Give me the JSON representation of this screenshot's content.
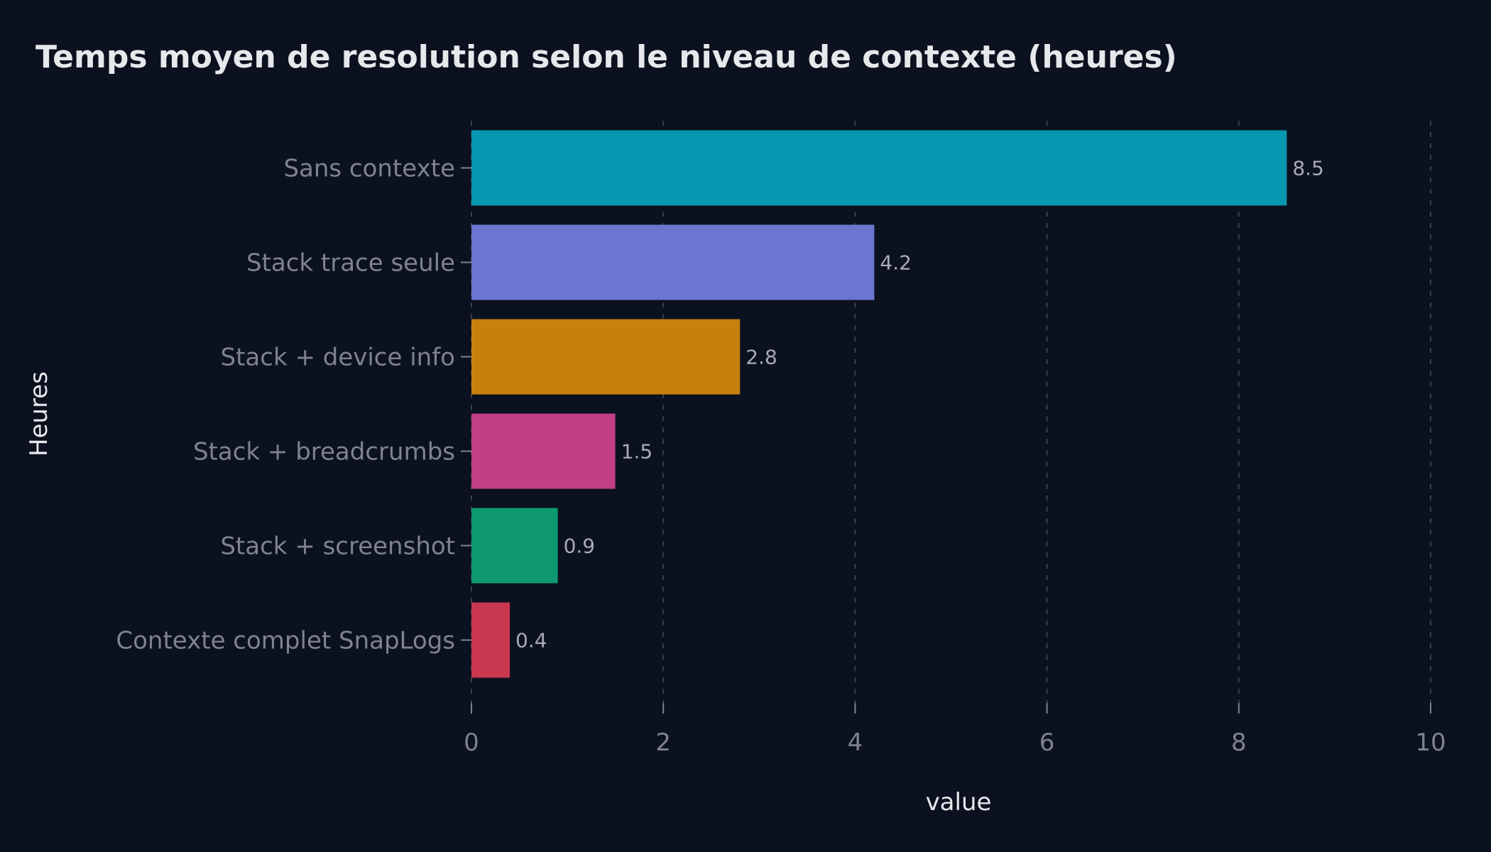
{
  "chart_data": {
    "type": "bar",
    "orientation": "horizontal",
    "title": "Temps moyen de resolution selon le niveau de contexte (heures)",
    "xlabel": "value",
    "ylabel": "Heures",
    "categories": [
      "Sans contexte",
      "Stack trace seule",
      "Stack + device info",
      "Stack + breadcrumbs",
      "Stack + screenshot",
      "Contexte complet SnapLogs"
    ],
    "values": [
      8.5,
      4.2,
      2.8,
      1.5,
      0.9,
      0.4
    ],
    "data_labels": [
      "8.5",
      "4.2",
      "2.8",
      "1.5",
      "0.9",
      "0.4"
    ],
    "colors": [
      "#0897b1",
      "#6b76d0",
      "#c7800e",
      "#c13f84",
      "#0f9970",
      "#c93750"
    ],
    "xlim": [
      0,
      10
    ],
    "xticks": [
      0,
      2,
      4,
      6,
      8,
      10
    ],
    "xtick_labels": [
      "0",
      "2",
      "4",
      "6",
      "8",
      "10"
    ],
    "grid": "vertical dashed",
    "legend": "none",
    "background": "#0b111e"
  }
}
